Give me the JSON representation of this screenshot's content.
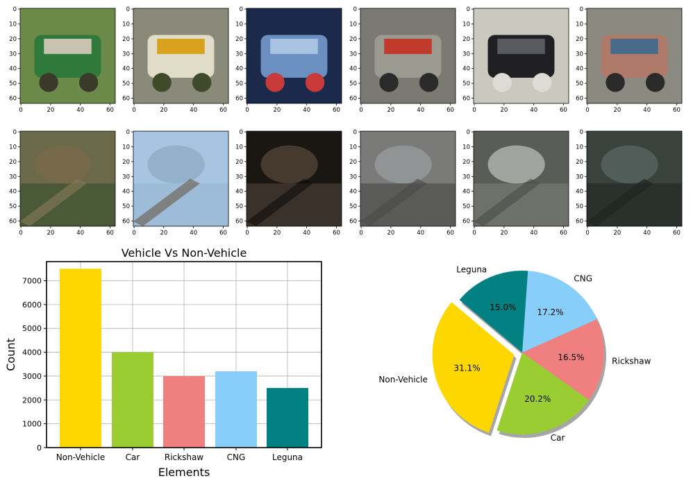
{
  "thumbnails": {
    "y_ticks": [
      "0",
      "10",
      "20",
      "30",
      "40",
      "50",
      "60"
    ],
    "x_ticks": [
      "0",
      "20",
      "40",
      "60"
    ],
    "rows": [
      [
        {
          "subject": "green-cng-autorickshaw",
          "colors": [
            "#6b8a4a",
            "#2f7a3a",
            "#c8c3b0",
            "#3a3a2a"
          ]
        },
        {
          "subject": "white-yellow-minibus",
          "colors": [
            "#8a8a7a",
            "#e0dcc8",
            "#d9a21e",
            "#3f4a2a"
          ]
        },
        {
          "subject": "blue-car-rear",
          "colors": [
            "#1b2a4a",
            "#6a8fc0",
            "#a9c3e3",
            "#c93a3a"
          ]
        },
        {
          "subject": "cycle-rickshaw-with-rider",
          "colors": [
            "#7a7a72",
            "#9a9a90",
            "#c0392b",
            "#2a2a2a"
          ]
        },
        {
          "subject": "black-car-front",
          "colors": [
            "#c9c9c0",
            "#1f1f24",
            "#5a5a62",
            "#dcdcd4"
          ]
        },
        {
          "subject": "decorated-rickshaw",
          "colors": [
            "#8a8a80",
            "#b07a6a",
            "#4a6a8a",
            "#2a2a2a"
          ]
        }
      ],
      [
        {
          "subject": "trees",
          "colors": [
            "#6a6a4a",
            "#4a5a38",
            "#7a6a48",
            "#8a7a5a"
          ]
        },
        {
          "subject": "sky",
          "colors": [
            "#a7c5e0",
            "#9cbcd8",
            "#8aa8c2",
            "#6a5a48"
          ]
        },
        {
          "subject": "dark-scene",
          "colors": [
            "#1a1612",
            "#3a322a",
            "#5a4a3a",
            "#0f0c0a"
          ]
        },
        {
          "subject": "guardrail-road",
          "colors": [
            "#7a7a78",
            "#5a5a58",
            "#9aa0a0",
            "#4a4a48"
          ]
        },
        {
          "subject": "road-lane-lines",
          "colors": [
            "#5a5c58",
            "#6e706a",
            "#bfc2bc",
            "#4a4c48"
          ]
        },
        {
          "subject": "dark-guardrail",
          "colors": [
            "#3a423c",
            "#2a302c",
            "#5a6a64",
            "#1e2420"
          ]
        }
      ]
    ]
  },
  "chart_data": [
    {
      "type": "bar",
      "title": "Vehicle Vs Non-Vehicle",
      "xlabel": "Elements",
      "ylabel": "Count",
      "categories": [
        "Non-Vehicle",
        "Car",
        "Rickshaw",
        "CNG",
        "Leguna"
      ],
      "values": [
        7500,
        4000,
        3000,
        3200,
        2500
      ],
      "colors": [
        "#ffd700",
        "#9acd32",
        "#f08080",
        "#87cefa",
        "#008080"
      ],
      "ylim": [
        0,
        7800
      ],
      "yticks": [
        0,
        1000,
        2000,
        3000,
        4000,
        5000,
        6000,
        7000
      ],
      "grid": true
    },
    {
      "type": "pie",
      "labels": [
        "Non-Vehicle",
        "Car",
        "Rickshaw",
        "CNG",
        "Leguna"
      ],
      "values": [
        31.1,
        20.2,
        16.5,
        17.2,
        15.0
      ],
      "pct_labels": [
        "31.1%",
        "20.2%",
        "16.5%",
        "17.2%",
        "15.0%"
      ],
      "colors": [
        "#ffd700",
        "#9acd32",
        "#f08080",
        "#87cefa",
        "#008080"
      ],
      "explode": [
        0.1,
        0,
        0,
        0,
        0
      ],
      "shadow": true,
      "start_angle_deg": 140
    }
  ]
}
